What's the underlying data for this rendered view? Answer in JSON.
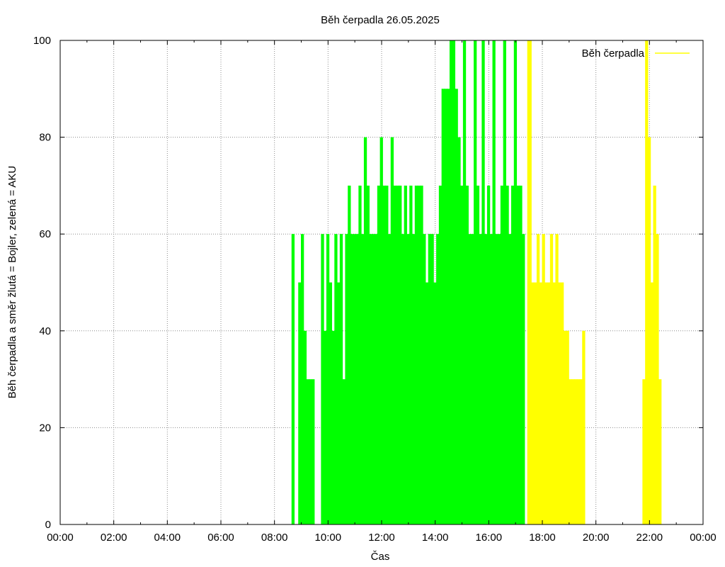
{
  "chart_data": {
    "type": "bar",
    "title": "Běh čerpadla 26.05.2025",
    "xlabel": "Čas",
    "ylabel": "Běh čerpadla a směr žlutá = Bojler, zelená = AKU",
    "xlim": [
      "00:00",
      "24:00"
    ],
    "ylim": [
      0,
      100
    ],
    "x_ticks": [
      "00:00",
      "02:00",
      "04:00",
      "06:00",
      "08:00",
      "10:00",
      "12:00",
      "14:00",
      "16:00",
      "18:00",
      "20:00",
      "22:00",
      "00:00"
    ],
    "y_ticks": [
      0,
      20,
      40,
      60,
      80,
      100
    ],
    "grid": true,
    "legend": {
      "position": "top-right",
      "entries": [
        {
          "label": "Běh čerpadla",
          "color": "#ffff00"
        }
      ]
    },
    "series": [
      {
        "color": "#00ff00",
        "x_unit": "hours",
        "x": [
          8.65,
          8.9,
          9.0,
          9.1,
          9.2,
          9.3,
          9.4,
          9.75,
          9.85,
          9.95,
          10.05,
          10.15,
          10.25,
          10.35,
          10.45,
          10.55,
          10.65,
          10.75,
          10.85,
          10.95,
          11.05,
          11.15,
          11.25,
          11.35,
          11.45,
          11.55,
          11.65,
          11.75,
          11.85,
          11.95,
          12.05,
          12.15,
          12.25,
          12.35,
          12.45,
          12.55,
          12.65,
          12.75,
          12.85,
          12.95,
          13.05,
          13.15,
          13.25,
          13.35,
          13.45,
          13.55,
          13.65,
          13.75,
          13.85,
          13.95,
          14.05,
          14.15,
          14.25,
          14.35,
          14.45,
          14.55,
          14.65,
          14.75,
          14.85,
          14.95,
          15.05,
          15.15,
          15.25,
          15.35,
          15.45,
          15.55,
          15.65,
          15.75,
          15.85,
          15.95,
          16.05,
          16.15,
          16.25,
          16.35,
          16.45,
          16.55,
          16.65,
          16.75,
          16.85,
          16.95,
          17.05,
          17.15,
          17.25
        ],
        "values": [
          60,
          50,
          60,
          40,
          30,
          30,
          30,
          60,
          40,
          60,
          50,
          40,
          60,
          50,
          60,
          30,
          60,
          70,
          60,
          60,
          60,
          70,
          60,
          80,
          70,
          60,
          60,
          60,
          70,
          80,
          70,
          70,
          60,
          80,
          70,
          70,
          70,
          60,
          70,
          60,
          70,
          60,
          70,
          70,
          70,
          60,
          50,
          60,
          60,
          50,
          60,
          70,
          90,
          90,
          90,
          100,
          100,
          90,
          80,
          70,
          100,
          70,
          60,
          60,
          100,
          70,
          60,
          100,
          60,
          70,
          60,
          100,
          60,
          60,
          70,
          100,
          70,
          60,
          70,
          100,
          70,
          70,
          60
        ]
      },
      {
        "color": "#ffff00",
        "x_unit": "hours",
        "x": [
          17.45,
          17.6,
          17.7,
          17.8,
          17.9,
          18.0,
          18.1,
          18.2,
          18.3,
          18.4,
          18.5,
          18.6,
          18.7,
          18.8,
          18.9,
          19.0,
          19.1,
          19.2,
          19.3,
          19.4,
          19.5,
          21.75,
          21.85,
          21.95,
          22.05,
          22.15,
          22.25,
          22.35
        ],
        "values": [
          100,
          50,
          50,
          60,
          50,
          60,
          50,
          50,
          60,
          50,
          60,
          50,
          50,
          40,
          40,
          30,
          30,
          30,
          30,
          30,
          40,
          30,
          100,
          80,
          50,
          70,
          60,
          30
        ]
      }
    ]
  }
}
